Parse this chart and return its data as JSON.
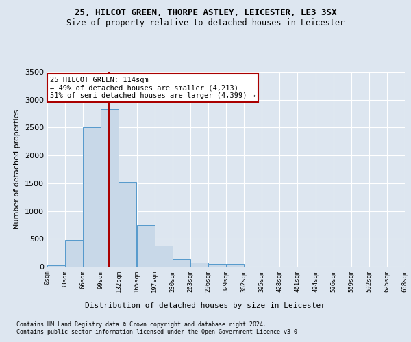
{
  "title1": "25, HILCOT GREEN, THORPE ASTLEY, LEICESTER, LE3 3SX",
  "title2": "Size of property relative to detached houses in Leicester",
  "xlabel": "Distribution of detached houses by size in Leicester",
  "ylabel": "Number of detached properties",
  "bin_labels": [
    "0sqm",
    "33sqm",
    "66sqm",
    "99sqm",
    "132sqm",
    "165sqm",
    "197sqm",
    "230sqm",
    "263sqm",
    "296sqm",
    "329sqm",
    "362sqm",
    "395sqm",
    "428sqm",
    "461sqm",
    "494sqm",
    "526sqm",
    "559sqm",
    "592sqm",
    "625sqm",
    "658sqm"
  ],
  "bar_heights": [
    30,
    480,
    2510,
    2820,
    1520,
    750,
    385,
    140,
    70,
    55,
    55,
    0,
    0,
    0,
    0,
    0,
    0,
    0,
    0,
    0
  ],
  "bar_color": "#c8d8e8",
  "bar_edge_color": "#5599cc",
  "vline_x": 114,
  "vline_color": "#aa0000",
  "annotation_line1": "25 HILCOT GREEN: 114sqm",
  "annotation_line2": "← 49% of detached houses are smaller (4,213)",
  "annotation_line3": "51% of semi-detached houses are larger (4,399) →",
  "annotation_box_color": "#ffffff",
  "annotation_box_edge": "#aa0000",
  "ylim": [
    0,
    3500
  ],
  "xlim_max": 660,
  "bin_width": 33,
  "num_bins": 20,
  "footnote1": "Contains HM Land Registry data © Crown copyright and database right 2024.",
  "footnote2": "Contains public sector information licensed under the Open Government Licence v3.0.",
  "background_color": "#dde6f0",
  "plot_bg_color": "#dde6f0",
  "yticks": [
    0,
    500,
    1000,
    1500,
    2000,
    2500,
    3000,
    3500
  ],
  "title1_fontsize": 9,
  "title2_fontsize": 8.5,
  "ylabel_fontsize": 8,
  "xtick_fontsize": 6.5,
  "ytick_fontsize": 8,
  "xlabel_fontsize": 8,
  "footnote_fontsize": 6,
  "annot_fontsize": 7.5
}
